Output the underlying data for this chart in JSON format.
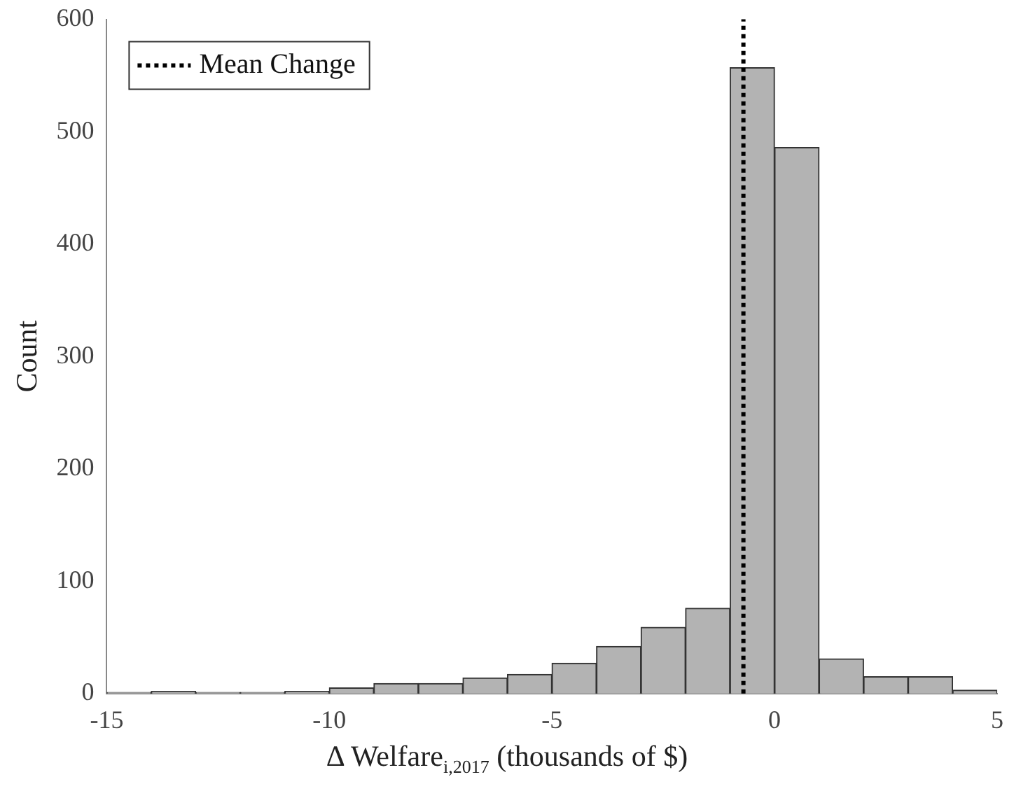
{
  "chart_data": {
    "type": "histogram",
    "bins": [
      -15,
      -14,
      -13,
      -12,
      -11,
      -10,
      -9,
      -8,
      -7,
      -6,
      -5,
      -4,
      -3,
      -2,
      -1,
      0,
      1,
      2,
      3,
      4,
      5
    ],
    "values": [
      1,
      2,
      1,
      1,
      2,
      5,
      9,
      9,
      14,
      17,
      27,
      42,
      59,
      76,
      557,
      486,
      31,
      15,
      15,
      3
    ],
    "color": "#b3b3b3",
    "xlabel": "Δ Welfare$_{i,2017}$ (thousands of $)",
    "ylabel": "Count",
    "xlim": [
      -15,
      5
    ],
    "xticks": [
      -15,
      -10,
      -5,
      0,
      5
    ],
    "ylim": [
      0,
      600
    ],
    "yticks": [
      0,
      100,
      200,
      300,
      400,
      500,
      600
    ],
    "ref_lines": [
      {
        "axis": "x",
        "value": -0.7,
        "label": "Mean Change",
        "color": "#000000",
        "line_style": "dotted"
      }
    ],
    "legend": "top left",
    "grid": false
  }
}
